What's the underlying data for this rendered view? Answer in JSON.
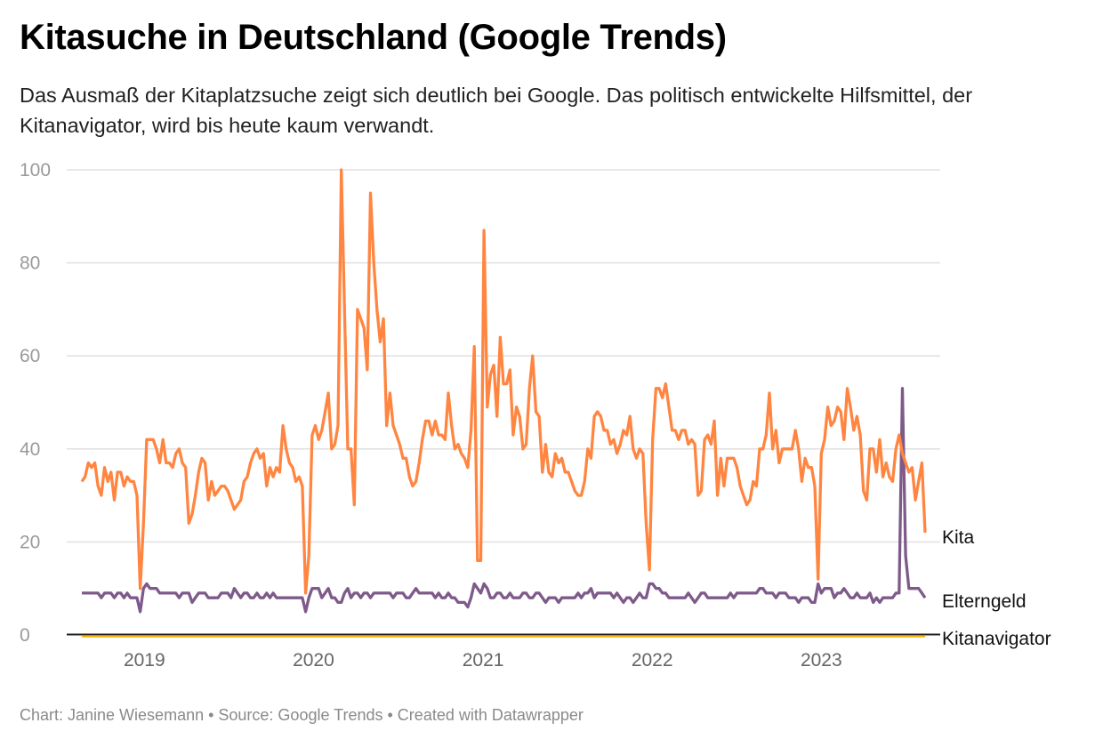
{
  "header": {
    "title": "Kitasuche in Deutschland (Google Trends)",
    "subtitle": "Das Ausmaß der Kitaplatzsuche zeigt sich deutlich bei Google. Das politisch entwickelte Hilfsmittel, der Kitanavigator, wird bis heute kaum verwandt."
  },
  "footer": {
    "credit": "Chart: Janine Wiesemann • Source: Google Trends • Created with Datawrapper"
  },
  "chart_data": {
    "type": "line",
    "title": "Kitasuche in Deutschland (Google Trends)",
    "ylim": [
      0,
      100
    ],
    "yticks": [
      "0",
      "20",
      "40",
      "60",
      "80",
      "100"
    ],
    "xticks": [
      "2019",
      "2020",
      "2021",
      "2022",
      "2023"
    ],
    "grid": true,
    "legend": "direct labels at line ends (right)",
    "x": [
      "2018-08-19",
      "2018-08-26",
      "2018-09-02",
      "2018-09-09",
      "2018-09-16",
      "2018-09-23",
      "2018-09-30",
      "2018-10-07",
      "2018-10-14",
      "2018-10-21",
      "2018-10-28",
      "2018-11-04",
      "2018-11-11",
      "2018-11-18",
      "2018-11-25",
      "2018-12-02",
      "2018-12-09",
      "2018-12-16",
      "2018-12-23",
      "2018-12-30",
      "2019-01-06",
      "2019-01-13",
      "2019-01-20",
      "2019-01-27",
      "2019-02-03",
      "2019-02-10",
      "2019-02-17",
      "2019-02-24",
      "2019-03-03",
      "2019-03-10",
      "2019-03-17",
      "2019-03-24",
      "2019-03-31",
      "2019-04-07",
      "2019-04-14",
      "2019-04-21",
      "2019-04-28",
      "2019-05-05",
      "2019-05-12",
      "2019-05-19",
      "2019-05-26",
      "2019-06-02",
      "2019-06-09",
      "2019-06-16",
      "2019-06-23",
      "2019-06-30",
      "2019-07-07",
      "2019-07-14",
      "2019-07-21",
      "2019-07-28",
      "2019-08-04",
      "2019-08-11",
      "2019-08-18",
      "2019-08-25",
      "2019-09-01",
      "2019-09-08",
      "2019-09-15",
      "2019-09-22",
      "2019-09-29",
      "2019-10-06",
      "2019-10-13",
      "2019-10-20",
      "2019-10-27",
      "2019-11-03",
      "2019-11-10",
      "2019-11-17",
      "2019-11-24",
      "2019-12-01",
      "2019-12-08",
      "2019-12-15",
      "2019-12-22",
      "2019-12-29",
      "2020-01-05",
      "2020-01-12",
      "2020-01-19",
      "2020-01-26",
      "2020-02-02",
      "2020-02-09",
      "2020-02-16",
      "2020-02-23",
      "2020-03-01",
      "2020-03-08",
      "2020-03-15",
      "2020-03-22",
      "2020-03-29",
      "2020-04-05",
      "2020-04-12",
      "2020-04-19",
      "2020-04-26",
      "2020-05-03",
      "2020-05-10",
      "2020-05-17",
      "2020-05-24",
      "2020-05-31",
      "2020-06-07",
      "2020-06-14",
      "2020-06-21",
      "2020-06-28",
      "2020-07-05",
      "2020-07-12",
      "2020-07-19",
      "2020-07-26",
      "2020-08-02",
      "2020-08-09",
      "2020-08-16",
      "2020-08-23",
      "2020-08-30",
      "2020-09-06",
      "2020-09-13",
      "2020-09-20",
      "2020-09-27",
      "2020-10-04",
      "2020-10-11",
      "2020-10-18",
      "2020-10-25",
      "2020-11-01",
      "2020-11-08",
      "2020-11-15",
      "2020-11-22",
      "2020-11-29",
      "2020-12-06",
      "2020-12-13",
      "2020-12-20",
      "2020-12-27",
      "2021-01-03",
      "2021-01-10",
      "2021-01-17",
      "2021-01-24",
      "2021-01-31",
      "2021-02-07",
      "2021-02-14",
      "2021-02-21",
      "2021-02-28",
      "2021-03-07",
      "2021-03-14",
      "2021-03-21",
      "2021-03-28",
      "2021-04-04",
      "2021-04-11",
      "2021-04-18",
      "2021-04-25",
      "2021-05-02",
      "2021-05-09",
      "2021-05-16",
      "2021-05-23",
      "2021-05-30",
      "2021-06-06",
      "2021-06-13",
      "2021-06-20",
      "2021-06-27",
      "2021-07-04",
      "2021-07-11",
      "2021-07-18",
      "2021-07-25",
      "2021-08-01",
      "2021-08-08",
      "2021-08-15",
      "2021-08-22",
      "2021-08-29",
      "2021-09-05",
      "2021-09-12",
      "2021-09-19",
      "2021-09-26",
      "2021-10-03",
      "2021-10-10",
      "2021-10-17",
      "2021-10-24",
      "2021-10-31",
      "2021-11-07",
      "2021-11-14",
      "2021-11-21",
      "2021-11-28",
      "2021-12-05",
      "2021-12-12",
      "2021-12-19",
      "2021-12-26",
      "2022-01-02",
      "2022-01-09",
      "2022-01-16",
      "2022-01-23",
      "2022-01-30",
      "2022-02-06",
      "2022-02-13",
      "2022-02-20",
      "2022-02-27",
      "2022-03-06",
      "2022-03-13",
      "2022-03-20",
      "2022-03-27",
      "2022-04-03",
      "2022-04-10",
      "2022-04-17",
      "2022-04-24",
      "2022-05-01",
      "2022-05-08",
      "2022-05-15",
      "2022-05-22",
      "2022-05-29",
      "2022-06-05",
      "2022-06-12",
      "2022-06-19",
      "2022-06-26",
      "2022-07-03",
      "2022-07-10",
      "2022-07-17",
      "2022-07-24",
      "2022-07-31",
      "2022-08-07",
      "2022-08-14",
      "2022-08-21",
      "2022-08-28",
      "2022-09-04",
      "2022-09-11",
      "2022-09-18",
      "2022-09-25",
      "2022-10-02",
      "2022-10-09",
      "2022-10-16",
      "2022-10-23",
      "2022-10-30",
      "2022-11-06",
      "2022-11-13",
      "2022-11-20",
      "2022-11-27",
      "2022-12-04",
      "2022-12-11",
      "2022-12-18",
      "2022-12-25",
      "2023-01-01",
      "2023-01-08",
      "2023-01-15",
      "2023-01-22",
      "2023-01-29",
      "2023-02-05",
      "2023-02-12",
      "2023-02-19",
      "2023-02-26",
      "2023-03-05",
      "2023-03-12",
      "2023-03-19",
      "2023-03-26",
      "2023-04-02",
      "2023-04-09",
      "2023-04-16",
      "2023-04-23",
      "2023-04-30",
      "2023-05-07",
      "2023-05-14",
      "2023-05-21",
      "2023-05-28",
      "2023-06-04",
      "2023-06-11",
      "2023-06-18",
      "2023-06-25",
      "2023-07-02",
      "2023-07-09",
      "2023-07-16",
      "2023-07-23",
      "2023-07-30",
      "2023-08-06",
      "2023-08-13"
    ],
    "series": [
      {
        "name": "Kita",
        "color": "#ff8540",
        "values": [
          33,
          34,
          37,
          36,
          37,
          32,
          30,
          36,
          33,
          35,
          29,
          35,
          35,
          32,
          34,
          33,
          33,
          30,
          10,
          24,
          42,
          42,
          42,
          40,
          37,
          42,
          37,
          37,
          36,
          39,
          40,
          37,
          36,
          24,
          26,
          30,
          35,
          38,
          37,
          29,
          33,
          30,
          31,
          32,
          32,
          31,
          29,
          27,
          28,
          29,
          33,
          34,
          37,
          39,
          40,
          38,
          39,
          32,
          36,
          34,
          36,
          35,
          45,
          40,
          37,
          36,
          33,
          34,
          32,
          9,
          17,
          43,
          45,
          42,
          44,
          48,
          52,
          40,
          41,
          45,
          100,
          70,
          40,
          40,
          28,
          70,
          68,
          66,
          57,
          95,
          80,
          70,
          63,
          68,
          45,
          52,
          45,
          43,
          41,
          38,
          38,
          34,
          32,
          33,
          37,
          42,
          46,
          46,
          43,
          46,
          43,
          43,
          42,
          52,
          45,
          40,
          41,
          39,
          38,
          36,
          44,
          62,
          16,
          16,
          87,
          49,
          56,
          58,
          47,
          64,
          54,
          54,
          57,
          43,
          49,
          47,
          40,
          41,
          53,
          60,
          48,
          47,
          35,
          41,
          35,
          34,
          39,
          37,
          38,
          35,
          35,
          33,
          31,
          30,
          30,
          33,
          40,
          38,
          47,
          48,
          47,
          44,
          44,
          41,
          42,
          39,
          41,
          44,
          43,
          47,
          40,
          38,
          40,
          39,
          24,
          14,
          42,
          53,
          53,
          51,
          54,
          49,
          44,
          44,
          42,
          44,
          44,
          41,
          42,
          41,
          30,
          31,
          42,
          43,
          41,
          46,
          30,
          38,
          32,
          38,
          38,
          38,
          36,
          32,
          30,
          28,
          29,
          33,
          32,
          40,
          40,
          43,
          52,
          40,
          44,
          37,
          40,
          40,
          40,
          40,
          44,
          40,
          33,
          38,
          36,
          36,
          32,
          12,
          39,
          42,
          49,
          45,
          46,
          49,
          48,
          42,
          53,
          49,
          44,
          47,
          43,
          31,
          29,
          40,
          40,
          35,
          42,
          34,
          37,
          34,
          33,
          40,
          43,
          39,
          37,
          35,
          36,
          29,
          33,
          37,
          22
        ]
      },
      {
        "name": "Elterngeld",
        "color": "#7e5a8a",
        "values": [
          9,
          9,
          9,
          9,
          9,
          9,
          8,
          9,
          9,
          9,
          8,
          9,
          9,
          8,
          9,
          8,
          8,
          8,
          5,
          10,
          11,
          10,
          10,
          10,
          9,
          9,
          9,
          9,
          9,
          9,
          8,
          9,
          9,
          9,
          7,
          8,
          9,
          9,
          9,
          8,
          8,
          8,
          8,
          9,
          9,
          9,
          8,
          10,
          9,
          8,
          9,
          9,
          8,
          8,
          9,
          8,
          8,
          9,
          8,
          9,
          8,
          8,
          8,
          8,
          8,
          8,
          8,
          8,
          8,
          5,
          8,
          10,
          10,
          10,
          8,
          9,
          10,
          8,
          8,
          7,
          7,
          9,
          10,
          8,
          9,
          9,
          8,
          9,
          9,
          8,
          9,
          9,
          9,
          9,
          9,
          9,
          8,
          9,
          9,
          9,
          8,
          8,
          9,
          10,
          9,
          9,
          9,
          9,
          9,
          8,
          9,
          8,
          8,
          9,
          8,
          8,
          7,
          7,
          7,
          6,
          8,
          11,
          10,
          9,
          11,
          10,
          8,
          8,
          9,
          9,
          8,
          8,
          9,
          8,
          8,
          8,
          9,
          9,
          8,
          8,
          9,
          9,
          8,
          7,
          8,
          8,
          8,
          7,
          8,
          8,
          8,
          8,
          8,
          9,
          8,
          9,
          9,
          10,
          8,
          9,
          9,
          9,
          9,
          9,
          8,
          9,
          8,
          7,
          8,
          8,
          7,
          8,
          9,
          8,
          8,
          11,
          11,
          10,
          10,
          9,
          9,
          8,
          8,
          8,
          8,
          8,
          8,
          9,
          8,
          7,
          8,
          9,
          9,
          8,
          8,
          8,
          8,
          8,
          8,
          8,
          9,
          8,
          9,
          9,
          9,
          9,
          9,
          9,
          9,
          10,
          10,
          9,
          9,
          9,
          8,
          9,
          9,
          9,
          8,
          8,
          8,
          7,
          8,
          8,
          8,
          7,
          7,
          11,
          9,
          10,
          10,
          10,
          8,
          9,
          9,
          10,
          9,
          8,
          8,
          9,
          8,
          8,
          8,
          9,
          7,
          8,
          7,
          8,
          8,
          8,
          8,
          9,
          9,
          53,
          17,
          10,
          10,
          10,
          10,
          9,
          8
        ]
      },
      {
        "name": "Kitanavigator",
        "color": "#f5b400",
        "values": "all 0"
      }
    ]
  }
}
